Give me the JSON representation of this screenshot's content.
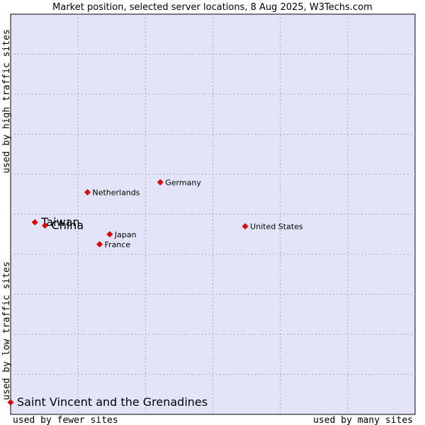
{
  "chart_data": {
    "type": "scatter",
    "title": "Market position, selected server locations, 8 Aug 2025, W3Techs.com",
    "xlabel_low": "used by fewer sites",
    "xlabel_high": "used by many sites",
    "ylabel_low": "used by low traffic sites",
    "ylabel_high": "used by high traffic sites",
    "xlim": [
      0,
      10
    ],
    "ylim": [
      0,
      10
    ],
    "grid": true,
    "colors": {
      "plot_bg": "#e4e4f8",
      "grid": "#a8a8c0",
      "point": "#ee0000",
      "point_edge": "#990000",
      "text": "#000000"
    },
    "points": [
      {
        "name": "United States",
        "x": 5.8,
        "y": 4.7,
        "label_size": "small"
      },
      {
        "name": "Germany",
        "x": 3.7,
        "y": 5.8,
        "label_size": "small"
      },
      {
        "name": "Netherlands",
        "x": 1.9,
        "y": 5.55,
        "label_size": "small"
      },
      {
        "name": "Taiwan",
        "x": 0.6,
        "y": 4.8,
        "label_size": "large"
      },
      {
        "name": "China",
        "x": 0.85,
        "y": 4.72,
        "label_size": "large"
      },
      {
        "name": "Japan",
        "x": 2.45,
        "y": 4.5,
        "label_size": "small"
      },
      {
        "name": "France",
        "x": 2.2,
        "y": 4.25,
        "label_size": "small"
      },
      {
        "name": "Saint Vincent and the Grenadines",
        "x": 0.0,
        "y": 0.3,
        "label_size": "large"
      }
    ]
  }
}
